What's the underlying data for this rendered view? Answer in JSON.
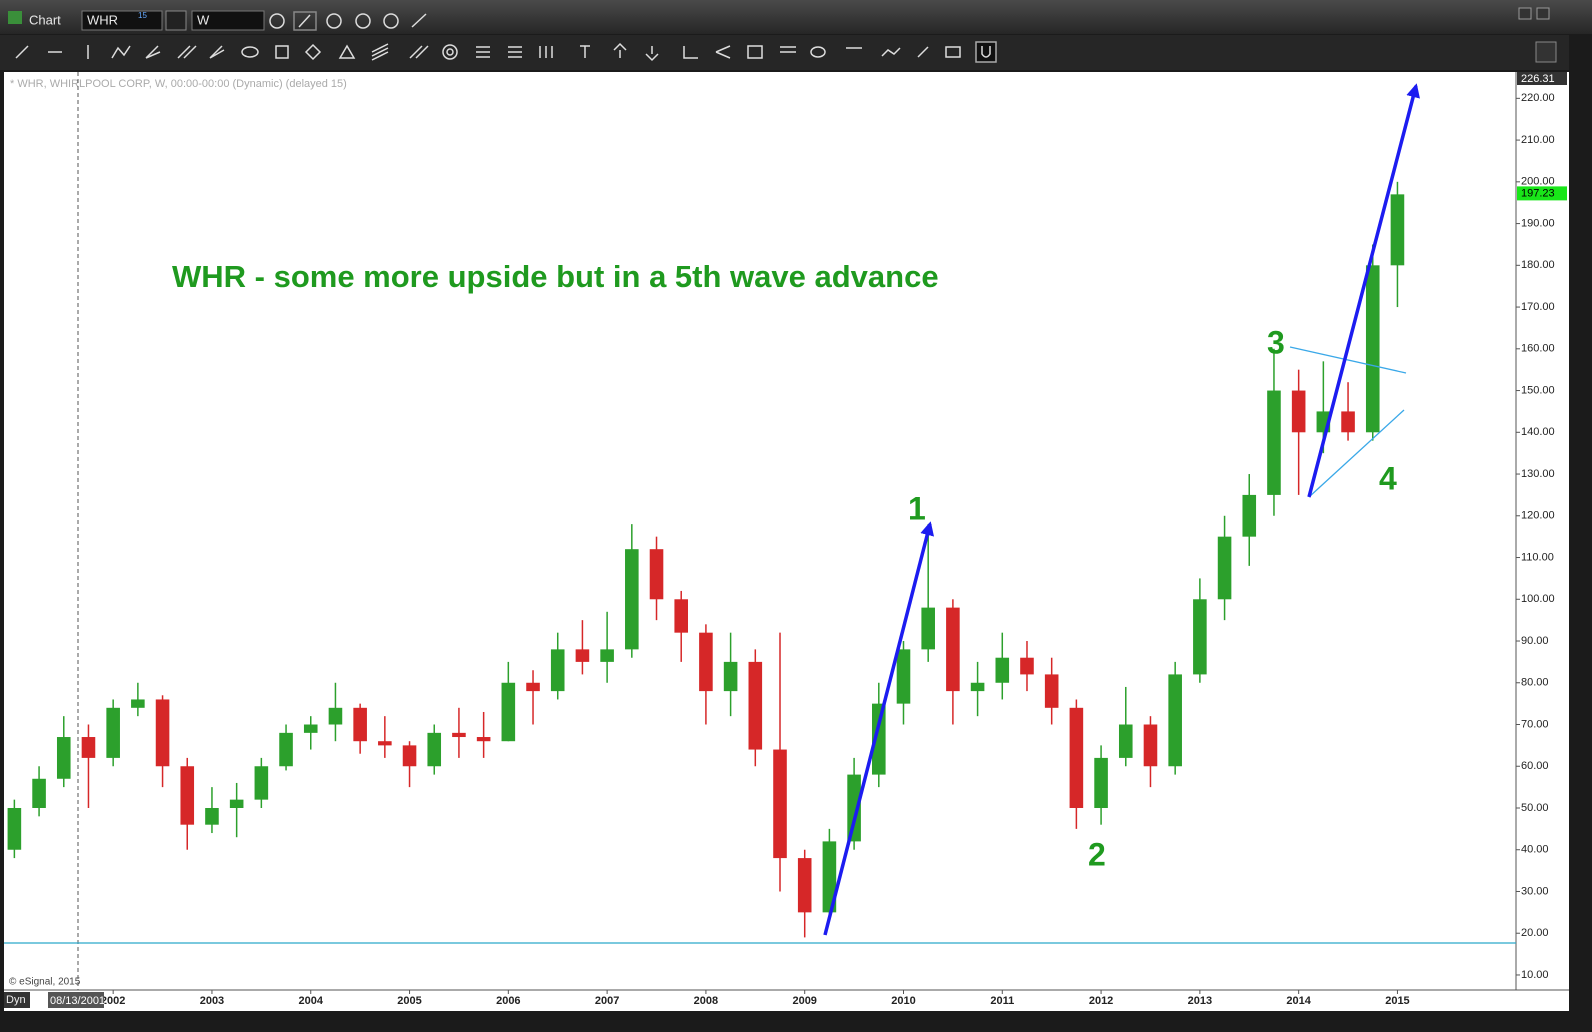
{
  "window": {
    "title": "Chart",
    "symbol": "WHR",
    "symbol_badge": "15",
    "interval": "W",
    "legend": "* WHR, WHIRLPOOL CORP, W, 00:00-00:00 (Dynamic) (delayed 15)",
    "copyright": "© eSignal, 2015",
    "mode": "Dyn",
    "cursor_date": "08/13/2001"
  },
  "chart_data": {
    "type": "candlestick",
    "title": "WHR - some more upside but in a 5th wave advance",
    "annotations": [
      "1",
      "2",
      "3",
      "4"
    ],
    "x": [
      2001.0,
      2001.25,
      2001.5,
      2001.75,
      2002.0,
      2002.25,
      2002.5,
      2002.75,
      2003.0,
      2003.25,
      2003.5,
      2003.75,
      2004.0,
      2004.25,
      2004.5,
      2004.75,
      2005.0,
      2005.25,
      2005.5,
      2005.75,
      2006.0,
      2006.25,
      2006.5,
      2006.75,
      2007.0,
      2007.25,
      2007.5,
      2007.75,
      2008.0,
      2008.25,
      2008.5,
      2008.75,
      2009.0,
      2009.25,
      2009.5,
      2009.75,
      2010.0,
      2010.25,
      2010.5,
      2010.75,
      2011.0,
      2011.25,
      2011.5,
      2011.75,
      2012.0,
      2012.25,
      2012.5,
      2012.75,
      2013.0,
      2013.25,
      2013.5,
      2013.75,
      2014.0,
      2014.25,
      2014.5,
      2014.75,
      2015.0
    ],
    "open": [
      40,
      50,
      57,
      67,
      62,
      74,
      76,
      60,
      46,
      50,
      52,
      60,
      68,
      70,
      74,
      66,
      65,
      60,
      68,
      67,
      66,
      80,
      78,
      88,
      85,
      88,
      112,
      100,
      92,
      78,
      85,
      64,
      38,
      25,
      42,
      58,
      75,
      88,
      98,
      78,
      80,
      86,
      82,
      74,
      50,
      62,
      70,
      60,
      82,
      100,
      115,
      125,
      150,
      140,
      145,
      140,
      180
    ],
    "high": [
      52,
      60,
      72,
      70,
      76,
      80,
      77,
      62,
      55,
      56,
      62,
      70,
      72,
      80,
      75,
      72,
      66,
      70,
      74,
      73,
      85,
      83,
      92,
      95,
      97,
      118,
      115,
      102,
      94,
      92,
      88,
      92,
      40,
      45,
      62,
      80,
      90,
      118,
      100,
      85,
      92,
      90,
      86,
      76,
      65,
      79,
      72,
      85,
      105,
      120,
      130,
      160,
      155,
      157,
      152,
      185,
      200
    ],
    "low": [
      38,
      48,
      55,
      50,
      60,
      72,
      55,
      40,
      44,
      43,
      50,
      59,
      64,
      66,
      63,
      62,
      55,
      58,
      62,
      62,
      66,
      70,
      76,
      82,
      80,
      86,
      95,
      85,
      70,
      72,
      60,
      30,
      19,
      24,
      40,
      55,
      70,
      85,
      70,
      72,
      76,
      78,
      70,
      45,
      46,
      60,
      55,
      58,
      80,
      95,
      108,
      120,
      125,
      135,
      138,
      138,
      170
    ],
    "close": [
      50,
      57,
      67,
      62,
      74,
      76,
      60,
      46,
      50,
      52,
      60,
      68,
      70,
      74,
      66,
      65,
      60,
      68,
      67,
      66,
      80,
      78,
      88,
      85,
      88,
      112,
      100,
      92,
      78,
      85,
      64,
      38,
      25,
      42,
      58,
      75,
      88,
      98,
      78,
      80,
      86,
      82,
      74,
      50,
      62,
      70,
      60,
      82,
      100,
      115,
      125,
      150,
      140,
      145,
      140,
      180,
      197
    ],
    "up_color": "#2ca02c",
    "down_color": "#d62728",
    "last_price": 197.23,
    "last_price_color": "#19e619",
    "xlim": [
      2000.895,
      2016.2
    ],
    "xticks": [
      2002,
      2003,
      2004,
      2005,
      2006,
      2007,
      2008,
      2009,
      2010,
      2011,
      2012,
      2013,
      2014,
      2015
    ],
    "ylim": [
      6.4,
      226.31
    ],
    "yticks": [
      {
        "value": 10,
        "label": "10.00"
      },
      {
        "value": 20,
        "label": "20.00"
      },
      {
        "value": 30,
        "label": "30.00"
      },
      {
        "value": 40,
        "label": "40.00"
      },
      {
        "value": 50,
        "label": "50.00"
      },
      {
        "value": 60,
        "label": "60.00"
      },
      {
        "value": 70,
        "label": "70.00"
      },
      {
        "value": 80,
        "label": "80.00"
      },
      {
        "value": 90,
        "label": "90.00"
      },
      {
        "value": 100,
        "label": "100.00"
      },
      {
        "value": 110,
        "label": "110.00"
      },
      {
        "value": 120,
        "label": "120.00"
      },
      {
        "value": 130,
        "label": "130.00"
      },
      {
        "value": 140,
        "label": "140.00"
      },
      {
        "value": 150,
        "label": "150.00"
      },
      {
        "value": 160,
        "label": "160.00"
      },
      {
        "value": 170,
        "label": "170.00"
      },
      {
        "value": 180,
        "label": "180.00"
      },
      {
        "value": 190,
        "label": "190.00"
      },
      {
        "value": 200,
        "label": "200.00"
      },
      {
        "value": 210,
        "label": "210.00"
      },
      {
        "value": 220,
        "label": "220.00"
      }
    ],
    "grid": false
  }
}
